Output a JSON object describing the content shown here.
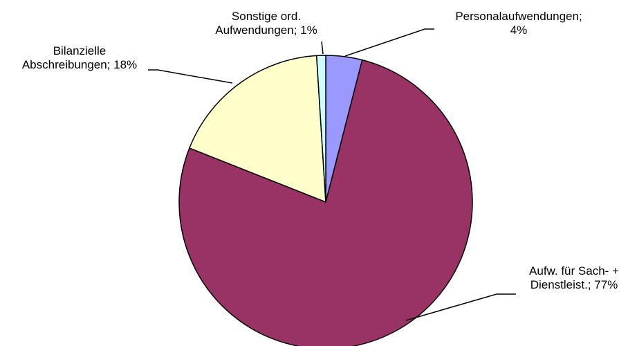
{
  "chart_data": {
    "type": "pie",
    "title": "",
    "slices": [
      {
        "label_lines": [
          "Personalaufwendungen;",
          "4%"
        ],
        "value": 4,
        "color": "#9999ff"
      },
      {
        "label_lines": [
          "Aufw. für Sach- +",
          "Dienstleist.; 77%"
        ],
        "value": 77,
        "color": "#993366"
      },
      {
        "label_lines": [
          "Bilanzielle",
          "Abschreibungen; 18%"
        ],
        "value": 18,
        "color": "#ffffcc"
      },
      {
        "label_lines": [
          "Sonstige ord.",
          "Aufwendungen; 1%"
        ],
        "value": 1,
        "color": "#ccffff"
      }
    ]
  }
}
